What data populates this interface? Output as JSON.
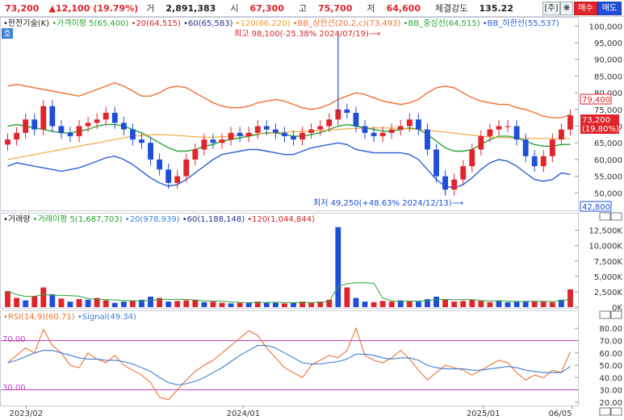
{
  "header": {
    "price": "73,200",
    "change": "▲12,100",
    "change_pct": "(19.79%)",
    "volume_label": "거",
    "volume": "2,891,383",
    "open_label": "시",
    "open": "67,300",
    "high_label": "고",
    "high": "75,700",
    "low_label": "저",
    "low": "64,600",
    "strength_label": "체결강도",
    "strength": "135.22",
    "btn_main": "[주]",
    "btn_star": "❋",
    "btn_buy": "매수",
    "btn_sell": "매도"
  },
  "colors": {
    "up": "#e0242c",
    "down": "#1f4fd8",
    "ma5": "#2aa336",
    "ma20": "#d5232b",
    "ma60": "#2a2f8f",
    "ma120": "#f59a23",
    "bb_upper": "#f07030",
    "bb_mid": "#2aa336",
    "bb_lower": "#2b5fd9",
    "rsi": "#f07030",
    "signal": "#3a7fd6"
  },
  "price_panel": {
    "legend": [
      {
        "text": "•한전기술(K)",
        "color": "#222"
      },
      {
        "text": "•가격이평 5(65,400)",
        "color": "#2aa336"
      },
      {
        "text": "•20(64,515)",
        "color": "#d5232b"
      },
      {
        "text": "•60(65,583)",
        "color": "#2a2f8f"
      },
      {
        "text": "•120(66,220)",
        "color": "#f59a23"
      },
      {
        "text": "•BB_상한선(20,2,c)(73,493)",
        "color": "#f07030"
      },
      {
        "text": "•BB_중심선(64,515)",
        "color": "#2aa336"
      },
      {
        "text": "•BB_하한선(55,537)",
        "color": "#2b5fd9"
      }
    ],
    "badge": "호",
    "max_note": "최고 98,100(-25.38% 2024/07/19)⟶",
    "min_note": "최저 49,250(+48.63% 2024/12/13)⟶",
    "price_tag_upper": "79,400",
    "price_tag_current": "73,200",
    "price_tag_pct": "(19.80%)",
    "price_tag_lower": "42,800"
  },
  "volume_panel": {
    "legend": [
      {
        "text": "•거래량",
        "color": "#222"
      },
      {
        "text": "•거래이평 5(1,687,703)",
        "color": "#2aa336"
      },
      {
        "text": "•20(978,939)",
        "color": "#3a7fd6"
      },
      {
        "text": "•60(1,188,148)",
        "color": "#2a2f8f"
      },
      {
        "text": "•120(1,044,844)",
        "color": "#d5232b"
      }
    ]
  },
  "rsi_panel": {
    "legend": [
      {
        "text": "•RSI(14,9)(60.71)",
        "color": "#f07030"
      },
      {
        "text": "•Signal(49.34)",
        "color": "#3a7fd6"
      }
    ],
    "level_high": "70.00",
    "level_low": "30.00"
  },
  "chart_data": [
    {
      "type": "candlestick",
      "title": "한전기술(K)",
      "y_ticks": [
        "100,000",
        "95,000",
        "90,000",
        "85,000",
        "80,000",
        "75,000",
        "70,000",
        "65,000",
        "60,000",
        "55,000",
        "50,000"
      ],
      "ylim": [
        45000,
        102000
      ],
      "x_labels": [
        "2023/02",
        "2024/01",
        "2025/01",
        "06/05"
      ],
      "close_path": [
        66000,
        68000,
        72000,
        69000,
        76000,
        70000,
        68000,
        67000,
        70000,
        71000,
        72000,
        74000,
        71000,
        69000,
        66000,
        65000,
        60000,
        57000,
        53000,
        55000,
        60000,
        63000,
        66000,
        65000,
        66000,
        68000,
        67000,
        68000,
        70000,
        69000,
        68000,
        67000,
        66000,
        68000,
        69000,
        70000,
        72000,
        75000,
        74000,
        70000,
        68000,
        67000,
        68000,
        69000,
        70000,
        72000,
        69000,
        63000,
        55000,
        51000,
        54000,
        58000,
        63000,
        67000,
        69000,
        70000,
        70000,
        66000,
        61000,
        58000,
        61000,
        66000,
        69000,
        73200
      ],
      "series": [
        {
          "name": "BB_상한선",
          "values": [
            82000,
            82500,
            82000,
            81500,
            81000,
            80500,
            80000,
            79500,
            79000,
            80000,
            81000,
            82000,
            83000,
            82000,
            80500,
            79000,
            79000,
            80000,
            81500,
            82000,
            81500,
            80000,
            78500,
            77000,
            76000,
            75500,
            75500,
            76000,
            77000,
            77500,
            78000,
            77500,
            76500,
            75500,
            75000,
            75500,
            76500,
            78000,
            79000,
            80000,
            79500,
            78500,
            77500,
            77000,
            76500,
            77000,
            78000,
            80000,
            81500,
            82000,
            81500,
            80000,
            78500,
            77500,
            77000,
            76500,
            76500,
            75500,
            75000,
            74000,
            73000,
            72500,
            72500,
            73500
          ]
        },
        {
          "name": "BB_중심선",
          "values": [
            70000,
            70500,
            70000,
            69500,
            69000,
            68500,
            68000,
            68000,
            68500,
            69000,
            70000,
            70500,
            70500,
            70000,
            69000,
            68000,
            66500,
            65000,
            63500,
            62500,
            62500,
            63000,
            64000,
            64500,
            65500,
            66000,
            66500,
            67000,
            67500,
            68000,
            68000,
            67500,
            67000,
            67000,
            67500,
            68000,
            69000,
            70000,
            70500,
            70000,
            69500,
            69000,
            68500,
            68500,
            69000,
            69500,
            69000,
            67500,
            65500,
            63500,
            62500,
            62500,
            63000,
            64500,
            66000,
            67000,
            67000,
            66500,
            65500,
            64500,
            64000,
            64000,
            64500,
            64515
          ]
        },
        {
          "name": "BB_하한선",
          "values": [
            58000,
            59000,
            58500,
            58000,
            57500,
            57000,
            56500,
            57000,
            57500,
            58500,
            59500,
            60500,
            61000,
            60000,
            58500,
            56500,
            54500,
            53000,
            52000,
            52500,
            54000,
            56000,
            58000,
            60000,
            61500,
            62000,
            62500,
            63000,
            63000,
            62500,
            62000,
            61500,
            61500,
            62500,
            63500,
            64000,
            64500,
            65000,
            64500,
            63000,
            62500,
            62000,
            62000,
            62000,
            62000,
            61500,
            60000,
            57000,
            54000,
            52000,
            51500,
            52500,
            54500,
            57000,
            59000,
            60000,
            59500,
            58000,
            56000,
            54000,
            53500,
            54000,
            56000,
            55537
          ]
        },
        {
          "name": "120",
          "values": [
            60000,
            60500,
            61000,
            61500,
            62000,
            62500,
            63000,
            63500,
            64000,
            64500,
            65000,
            65500,
            66000,
            66500,
            67000,
            67200,
            67400,
            67500,
            67400,
            67200,
            67000,
            66800,
            66700,
            66700,
            66800,
            67000,
            67200,
            67400,
            67600,
            67800,
            68000,
            68200,
            68300,
            68400,
            68500,
            68600,
            68800,
            69000,
            69200,
            69300,
            69400,
            69500,
            69500,
            69400,
            69300,
            69200,
            69000,
            68800,
            68500,
            68200,
            67900,
            67600,
            67300,
            67000,
            66800,
            66600,
            66500,
            66400,
            66300,
            66300,
            66300,
            66250,
            66220,
            66220
          ]
        }
      ]
    },
    {
      "type": "bar",
      "title": "거래량",
      "y_ticks": [
        "12,500K",
        "10,000K",
        "7,500K",
        "5,000K",
        "2,500K",
        "0K"
      ],
      "ylim": [
        0,
        13500
      ],
      "values": [
        2600,
        1500,
        1100,
        1800,
        3200,
        2100,
        1400,
        900,
        1300,
        1200,
        1500,
        1100,
        700,
        900,
        1000,
        1200,
        1700,
        1500,
        900,
        1000,
        1100,
        1200,
        800,
        900,
        700,
        600,
        800,
        700,
        900,
        800,
        700,
        600,
        700,
        900,
        800,
        900,
        1200,
        13000,
        3200,
        1500,
        900,
        800,
        1000,
        900,
        1100,
        1000,
        900,
        1300,
        1700,
        1300,
        900,
        1000,
        1200,
        1000,
        800,
        1100,
        800,
        900,
        1000,
        900,
        1000,
        800,
        1200,
        2900
      ],
      "up": [
        true,
        true,
        false,
        true,
        true,
        false,
        true,
        false,
        true,
        false,
        true,
        true,
        false,
        false,
        true,
        false,
        false,
        true,
        false,
        true,
        true,
        true,
        false,
        true,
        true,
        false,
        true,
        false,
        true,
        false,
        false,
        true,
        false,
        true,
        true,
        true,
        true,
        false,
        true,
        false,
        false,
        true,
        true,
        true,
        false,
        true,
        false,
        false,
        false,
        true,
        true,
        true,
        true,
        true,
        true,
        false,
        false,
        false,
        false,
        true,
        true,
        true,
        false,
        true
      ]
    },
    {
      "type": "line",
      "title": "RSI",
      "y_ticks": [
        "80.00",
        "70.00",
        "60.00",
        "50.00",
        "40.00",
        "30.00",
        "20.00"
      ],
      "ylim": [
        18,
        86
      ],
      "series": [
        {
          "name": "RSI",
          "values": [
            52,
            58,
            64,
            60,
            79,
            66,
            60,
            50,
            48,
            60,
            55,
            52,
            58,
            50,
            46,
            42,
            36,
            24,
            22,
            30,
            38,
            45,
            50,
            54,
            60,
            66,
            72,
            78,
            74,
            64,
            56,
            48,
            44,
            40,
            50,
            54,
            58,
            56,
            62,
            80,
            58,
            54,
            52,
            56,
            62,
            55,
            46,
            38,
            44,
            50,
            48,
            46,
            42,
            46,
            50,
            54,
            52,
            44,
            38,
            42,
            40,
            46,
            44,
            61
          ]
        },
        {
          "name": "Signal",
          "values": [
            52,
            54,
            57,
            60,
            62,
            62,
            60,
            58,
            56,
            55,
            55,
            54,
            54,
            53,
            51,
            48,
            45,
            40,
            36,
            34,
            35,
            37,
            40,
            44,
            48,
            53,
            58,
            62,
            66,
            66,
            64,
            60,
            56,
            52,
            51,
            51,
            52,
            53,
            55,
            59,
            59,
            58,
            56,
            55,
            56,
            56,
            54,
            50,
            48,
            47,
            47,
            47,
            46,
            46,
            47,
            48,
            49,
            48,
            46,
            45,
            44,
            44,
            44,
            49
          ]
        }
      ]
    }
  ]
}
